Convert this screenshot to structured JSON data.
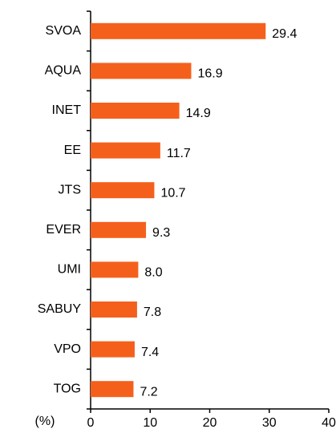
{
  "chart_data": {
    "type": "hbar",
    "categories": [
      "SVOA",
      "AQUA",
      "INET",
      "EE",
      "JTS",
      "EVER",
      "UMI",
      "SABUY",
      "VPO",
      "TOG"
    ],
    "values": [
      29.4,
      16.9,
      14.9,
      11.7,
      10.7,
      9.3,
      8.0,
      7.8,
      7.4,
      7.2
    ],
    "value_labels": [
      "29.4",
      "16.9",
      "14.9",
      "11.7",
      "10.7",
      "9.3",
      "8.0",
      "7.8",
      "7.4",
      "7.2"
    ],
    "color": "#f4601c",
    "xlabel": "(%)",
    "xlim": [
      0,
      40
    ],
    "xticks": [
      0,
      10,
      20,
      30,
      40
    ]
  }
}
